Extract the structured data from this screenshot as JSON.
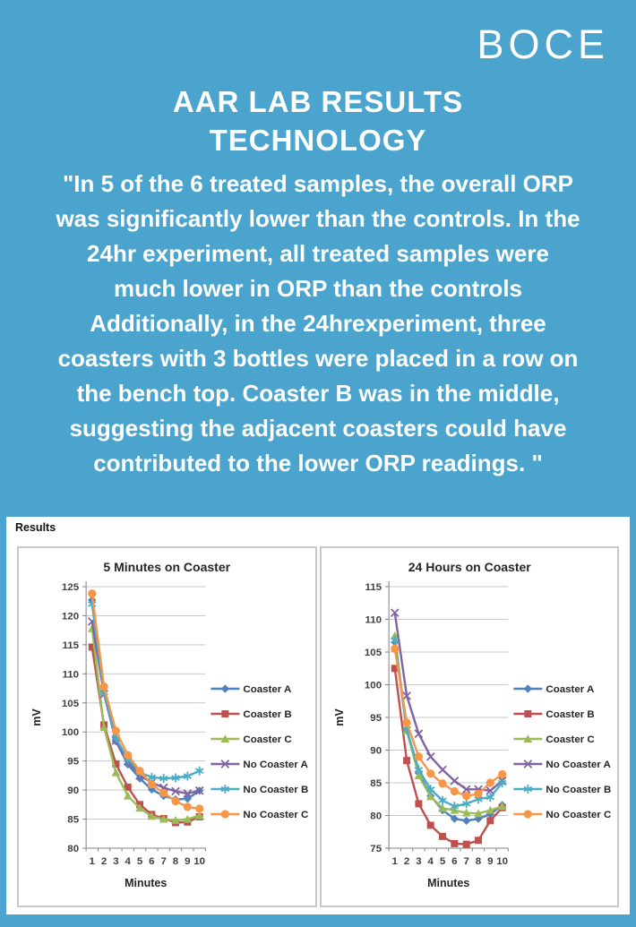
{
  "logo": "BOCE",
  "heading": {
    "line1": "AAR LAB RESULTS",
    "line2": "TECHNOLOGY"
  },
  "quote": "\"In 5 of the 6 treated samples, the overall ORP\nwas significantly lower than the controls. In the\n24hr experiment, all treated samples were\nmuch lower in ORP than the controls\nAdditionally, in the 24hrexperiment, three\ncoasters with 3 bottles were placed in a row on\nthe bench top. Coaster B was in the middle,\nsuggesting the adjacent coasters could have\ncontributed to the lower ORP readings. \"",
  "results_panel": {
    "label": "Results"
  },
  "colors": {
    "background": "#4aa4cd",
    "panel": "#ffffff",
    "gridline": "#c9c9c9",
    "axis": "#808080",
    "text": "#ffffff"
  },
  "chart_data": [
    {
      "type": "line",
      "title": "5 Minutes on Coaster",
      "xlabel": "Minutes",
      "ylabel": "mV",
      "x": [
        1,
        2,
        3,
        4,
        5,
        6,
        7,
        8,
        9,
        10
      ],
      "ylim": [
        80,
        125
      ],
      "ytick_step": 5,
      "grid": true,
      "legend_position": "right",
      "series": [
        {
          "name": "Coaster A",
          "color": "#4F81BD",
          "marker": "diamond",
          "values": [
            122.7,
            107.0,
            98.4,
            94.4,
            92.0,
            90.1,
            89.0,
            88.4,
            88.5,
            89.9
          ]
        },
        {
          "name": "Coaster B",
          "color": "#C0504D",
          "marker": "square",
          "values": [
            114.6,
            101.2,
            94.5,
            90.5,
            87.5,
            85.8,
            85.1,
            84.4,
            84.5,
            85.4
          ]
        },
        {
          "name": "Coaster C",
          "color": "#9BBB59",
          "marker": "triangle",
          "values": [
            117.8,
            100.8,
            93.0,
            89.0,
            86.9,
            85.5,
            85.0,
            84.8,
            85.0,
            85.6
          ]
        },
        {
          "name": "No Coaster A",
          "color": "#8064A2",
          "marker": "x",
          "values": [
            119.0,
            106.5,
            98.5,
            95.0,
            92.5,
            91.3,
            90.4,
            89.8,
            89.4,
            89.9
          ]
        },
        {
          "name": "No Coaster B",
          "color": "#4BACC6",
          "marker": "asterisk",
          "values": [
            122.0,
            106.8,
            99.0,
            95.3,
            93.0,
            92.2,
            92.0,
            92.1,
            92.4,
            93.3
          ]
        },
        {
          "name": "No Coaster C",
          "color": "#F79646",
          "marker": "circle",
          "values": [
            123.8,
            107.8,
            100.2,
            96.0,
            93.3,
            91.0,
            89.5,
            88.1,
            87.1,
            86.8
          ]
        }
      ]
    },
    {
      "type": "line",
      "title": "24 Hours on Coaster",
      "xlabel": "Minutes",
      "ylabel": "mV",
      "x": [
        1,
        2,
        3,
        4,
        5,
        6,
        7,
        8,
        9,
        10
      ],
      "ylim": [
        75,
        115
      ],
      "ytick_step": 5,
      "grid": true,
      "legend_position": "right",
      "series": [
        {
          "name": "Coaster A",
          "color": "#4F81BD",
          "marker": "diamond",
          "values": [
            106.5,
            93.0,
            86.5,
            83.0,
            80.8,
            79.5,
            79.2,
            79.5,
            80.2,
            81.6
          ]
        },
        {
          "name": "Coaster B",
          "color": "#C0504D",
          "marker": "square",
          "values": [
            102.5,
            88.4,
            81.8,
            78.5,
            76.8,
            75.7,
            75.6,
            76.2,
            79.2,
            81.2
          ]
        },
        {
          "name": "Coaster C",
          "color": "#9BBB59",
          "marker": "triangle",
          "values": [
            107.5,
            93.0,
            86.1,
            82.9,
            81.1,
            80.8,
            80.4,
            80.3,
            80.8,
            81.4
          ]
        },
        {
          "name": "No Coaster A",
          "color": "#8064A2",
          "marker": "x",
          "values": [
            111.0,
            98.3,
            92.5,
            89.0,
            87.0,
            85.3,
            84.0,
            84.0,
            83.8,
            85.3
          ]
        },
        {
          "name": "No Coaster B",
          "color": "#4BACC6",
          "marker": "asterisk",
          "values": [
            106.8,
            93.2,
            87.0,
            84.0,
            82.3,
            81.4,
            81.8,
            82.5,
            82.8,
            85.0
          ]
        },
        {
          "name": "No Coaster C",
          "color": "#F79646",
          "marker": "circle",
          "values": [
            105.5,
            94.2,
            89.0,
            86.4,
            84.9,
            83.7,
            83.0,
            83.3,
            85.0,
            86.3
          ]
        }
      ]
    }
  ]
}
